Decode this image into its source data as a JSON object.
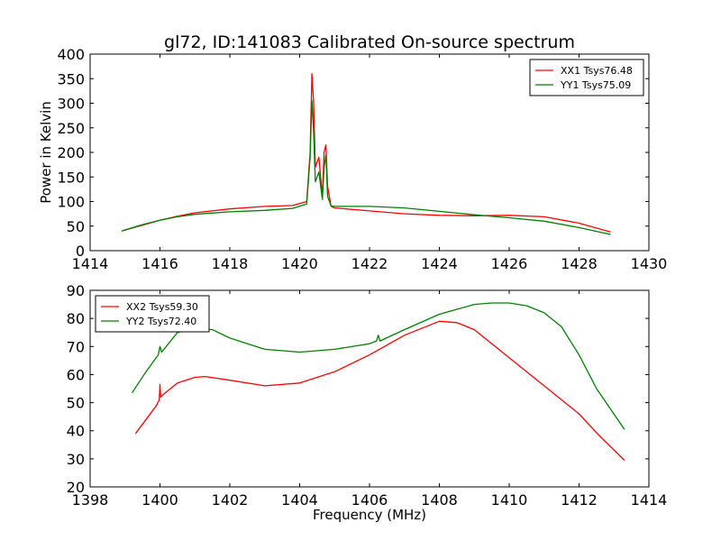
{
  "title": "gl72, ID:141083 Calibrated On-source spectrum",
  "chart_data": [
    {
      "type": "line",
      "ylabel": "Power in Kelvin",
      "xlabel": "",
      "xlim": [
        1414,
        1430
      ],
      "ylim": [
        0,
        400
      ],
      "xticks": [
        1414,
        1416,
        1418,
        1420,
        1422,
        1424,
        1426,
        1428,
        1430
      ],
      "yticks": [
        0,
        50,
        100,
        150,
        200,
        250,
        300,
        350,
        400
      ],
      "legend_position": "top-right",
      "series": [
        {
          "name": "XX1 Tsys76.48",
          "color": "#ff0000",
          "x": [
            1414.9,
            1415.5,
            1416.0,
            1416.5,
            1417.0,
            1418.0,
            1419.0,
            1419.8,
            1420.2,
            1420.3,
            1420.35,
            1420.4,
            1420.45,
            1420.55,
            1420.65,
            1420.7,
            1420.75,
            1420.8,
            1420.9,
            1421.0,
            1422.0,
            1423.0,
            1424.0,
            1425.0,
            1426.0,
            1427.0,
            1428.0,
            1428.9
          ],
          "y": [
            40,
            52,
            62,
            70,
            77,
            85,
            90,
            92,
            100,
            200,
            360,
            300,
            170,
            190,
            110,
            200,
            215,
            130,
            90,
            87,
            81,
            75,
            72,
            71,
            72,
            69,
            56,
            38
          ]
        },
        {
          "name": "YY1 Tsys75.09",
          "color": "#008000",
          "x": [
            1414.9,
            1415.5,
            1416.0,
            1416.5,
            1417.0,
            1418.0,
            1419.0,
            1419.8,
            1420.2,
            1420.3,
            1420.35,
            1420.4,
            1420.45,
            1420.55,
            1420.65,
            1420.7,
            1420.75,
            1420.8,
            1420.9,
            1421.0,
            1422.0,
            1423.0,
            1424.0,
            1425.0,
            1426.0,
            1427.0,
            1428.0,
            1428.9
          ],
          "y": [
            40,
            53,
            62,
            69,
            74,
            79,
            82,
            86,
            95,
            190,
            305,
            240,
            140,
            160,
            104,
            170,
            195,
            110,
            91,
            90,
            90,
            87,
            80,
            73,
            67,
            60,
            47,
            33
          ]
        }
      ]
    },
    {
      "type": "line",
      "ylabel": "",
      "xlabel": "Frequency (MHz)",
      "xlim": [
        1398,
        1414
      ],
      "ylim": [
        20,
        90
      ],
      "xticks": [
        1398,
        1400,
        1402,
        1404,
        1406,
        1408,
        1410,
        1412,
        1414
      ],
      "yticks": [
        20,
        30,
        40,
        50,
        60,
        70,
        80,
        90
      ],
      "legend_position": "top-left",
      "series": [
        {
          "name": "XX2 Tsys59.30",
          "color": "#ff0000",
          "x": [
            1399.3,
            1399.6,
            1399.9,
            1399.98,
            1400.0,
            1400.02,
            1400.1,
            1400.5,
            1401.0,
            1401.3,
            1402.0,
            1403.0,
            1404.0,
            1405.0,
            1406.0,
            1407.0,
            1408.0,
            1408.5,
            1409.0,
            1410.0,
            1411.0,
            1412.0,
            1412.6,
            1413.3
          ],
          "y": [
            39,
            44,
            49,
            51,
            56.5,
            52,
            53,
            57,
            59,
            59.3,
            58,
            56,
            57,
            61,
            67,
            74,
            79,
            78.5,
            76,
            66,
            56,
            46,
            38,
            29.5
          ]
        },
        {
          "name": "YY2 Tsys72.40",
          "color": "#008000",
          "x": [
            1399.2,
            1399.6,
            1399.95,
            1400.0,
            1400.05,
            1400.5,
            1401.0,
            1401.5,
            1402.0,
            1403.0,
            1404.0,
            1405.0,
            1406.0,
            1406.2,
            1406.25,
            1406.3,
            1407.0,
            1408.0,
            1409.0,
            1409.5,
            1410.0,
            1410.5,
            1411.0,
            1411.5,
            1412.0,
            1412.5,
            1413.3
          ],
          "y": [
            53.5,
            61,
            67,
            70,
            68,
            75,
            76.5,
            76,
            73,
            69,
            68,
            69,
            71,
            72,
            74,
            72,
            76,
            81.5,
            85,
            85.5,
            85.5,
            84.5,
            82,
            77,
            67,
            55,
            40.5
          ]
        }
      ]
    }
  ]
}
